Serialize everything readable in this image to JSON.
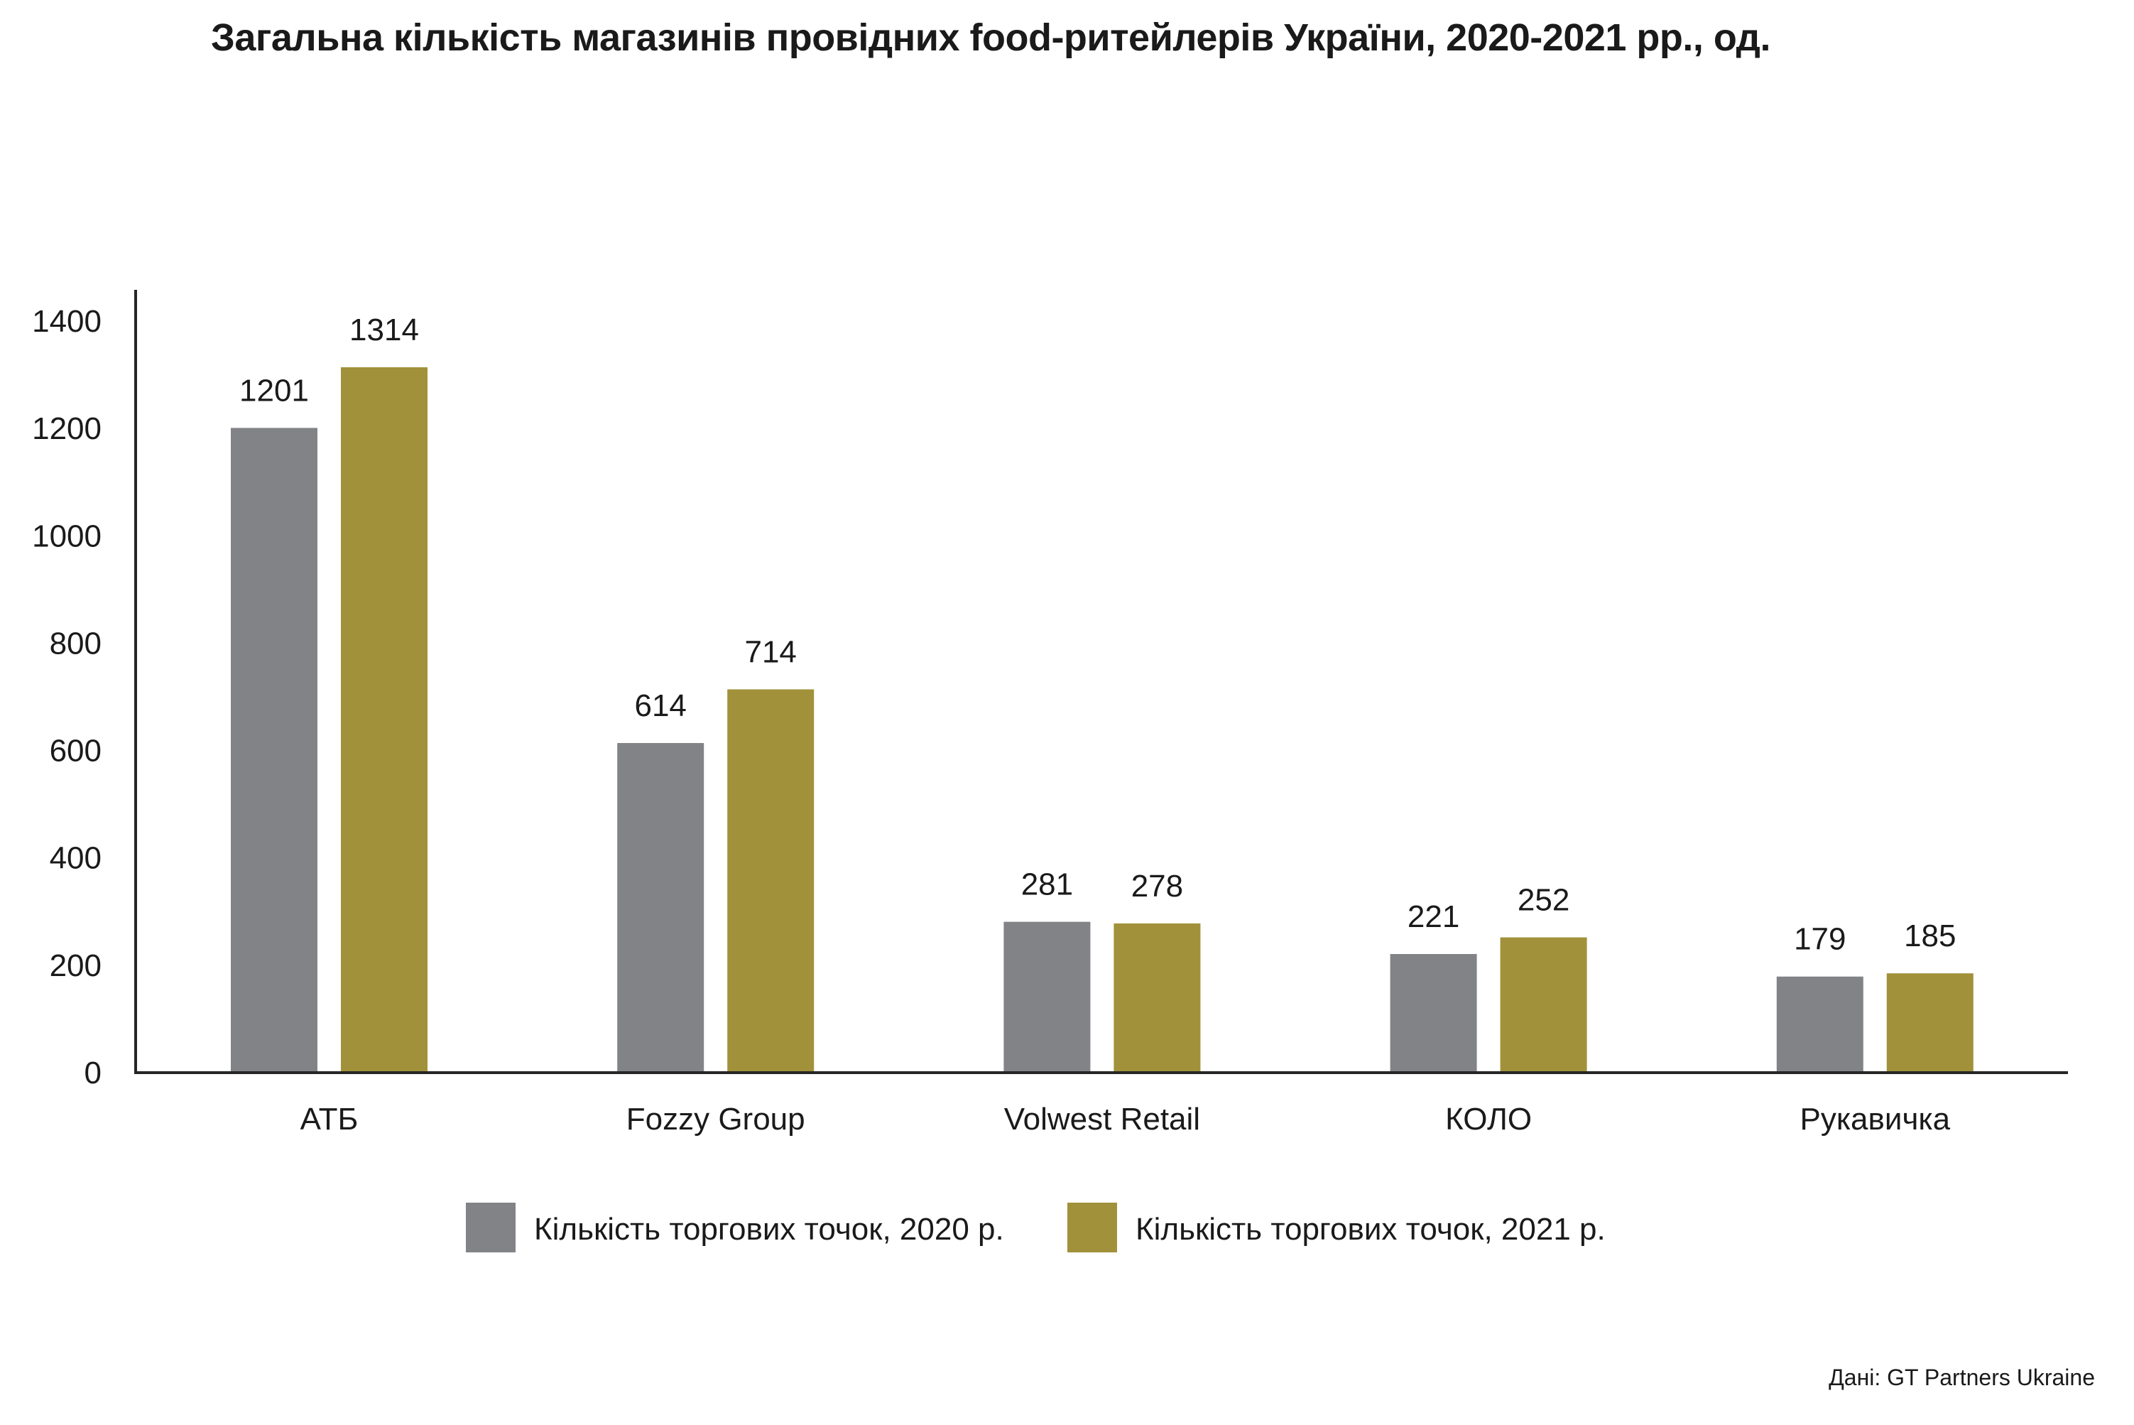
{
  "chart_data": {
    "type": "bar",
    "title": "Загальна кількість магазинів провідних food-ритейлерів України, 2020-2021 рр., од.",
    "xlabel": "",
    "ylabel": "",
    "categories": [
      "АТБ",
      "Fozzy Group",
      "Volwest Retail",
      "КОЛО",
      "Рукавичка"
    ],
    "series": [
      {
        "name": "Кількість торгових точок, 2020 р.",
        "color": "#828387",
        "values": [
          1201,
          614,
          281,
          221,
          179
        ]
      },
      {
        "name": "Кількість торгових точок, 2021 р.",
        "color": "#A1913A",
        "values": [
          1314,
          714,
          278,
          252,
          185
        ]
      }
    ],
    "ylim": [
      0,
      1400
    ],
    "yticks": [
      0,
      200,
      400,
      600,
      800,
      1000,
      1200,
      1400
    ],
    "grid": false,
    "data_labels": true,
    "legend_position": "bottom-center",
    "source": "Дані: GT Partners Ukraine"
  }
}
